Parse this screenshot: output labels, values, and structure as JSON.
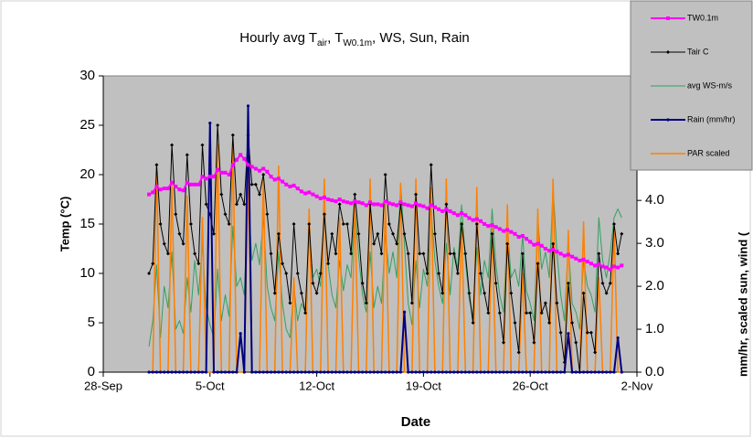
{
  "chart_data": {
    "type": "line",
    "title": [
      "Hourly avg T",
      "air",
      ", T",
      "W0.1m",
      ", WS, Sun, Rain"
    ],
    "x_label": "Date",
    "y_label": "Temp (°C)",
    "y2_label": "mm/hr, scaled sun, wind (",
    "plot_background": "#c0c0c0",
    "legend": "top-right",
    "xlim": [
      271,
      306
    ],
    "xticks": [
      {
        "value": 271,
        "label": "28-Sep"
      },
      {
        "value": 278,
        "label": "5-Oct"
      },
      {
        "value": 285,
        "label": "12-Oct"
      },
      {
        "value": 292,
        "label": "19-Oct"
      },
      {
        "value": 299,
        "label": "26-Oct"
      },
      {
        "value": 306,
        "label": "2-Nov"
      }
    ],
    "ylim": [
      0,
      30
    ],
    "yticks": [
      0,
      5,
      10,
      15,
      20,
      25,
      30
    ],
    "y2lim": [
      0,
      6.9
    ],
    "y2ticks": [
      {
        "value": 0,
        "label": "0.0"
      },
      {
        "value": 1,
        "label": "1.0"
      },
      {
        "value": 2,
        "label": "2.0"
      },
      {
        "value": 3,
        "label": "3.0"
      },
      {
        "value": 4,
        "label": "4.0"
      }
    ],
    "x": [
      274,
      274.25,
      274.5,
      274.75,
      275,
      275.25,
      275.5,
      275.75,
      276,
      276.25,
      276.5,
      276.75,
      277,
      277.25,
      277.5,
      277.75,
      278,
      278.25,
      278.5,
      278.75,
      279,
      279.25,
      279.5,
      279.75,
      280,
      280.25,
      280.5,
      280.75,
      281,
      281.25,
      281.5,
      281.75,
      282,
      282.25,
      282.5,
      282.75,
      283,
      283.25,
      283.5,
      283.75,
      284,
      284.25,
      284.5,
      284.75,
      285,
      285.25,
      285.5,
      285.75,
      286,
      286.25,
      286.5,
      286.75,
      287,
      287.25,
      287.5,
      287.75,
      288,
      288.25,
      288.5,
      288.75,
      289,
      289.25,
      289.5,
      289.75,
      290,
      290.25,
      290.5,
      290.75,
      291,
      291.25,
      291.5,
      291.75,
      292,
      292.25,
      292.5,
      292.75,
      293,
      293.25,
      293.5,
      293.75,
      294,
      294.25,
      294.5,
      294.75,
      295,
      295.25,
      295.5,
      295.75,
      296,
      296.25,
      296.5,
      296.75,
      297,
      297.25,
      297.5,
      297.75,
      298,
      298.25,
      298.5,
      298.75,
      299,
      299.25,
      299.5,
      299.75,
      300,
      300.25,
      300.5,
      300.75,
      301,
      301.25,
      301.5,
      301.75,
      302,
      302.25,
      302.5,
      302.75,
      303,
      303.25,
      303.5,
      303.75,
      304,
      304.25,
      304.5,
      304.75,
      305
    ],
    "series": [
      {
        "name": "TW0.1m",
        "color": "#ff00ff",
        "marker": "square",
        "width": 2,
        "values": [
          18.0,
          18.2,
          18.8,
          18.5,
          18.6,
          18.6,
          19.2,
          18.8,
          18.5,
          18.4,
          19.2,
          19.0,
          19.0,
          19.0,
          19.8,
          19.6,
          19.8,
          19.8,
          20.5,
          20.2,
          20.2,
          20.0,
          21.0,
          21.5,
          22.0,
          21.6,
          21.0,
          20.8,
          20.6,
          20.4,
          20.6,
          20.3,
          19.8,
          19.5,
          19.6,
          19.3,
          19.0,
          18.8,
          18.9,
          18.6,
          18.3,
          18.1,
          18.2,
          18.0,
          17.8,
          17.6,
          17.7,
          17.5,
          17.4,
          17.3,
          17.5,
          17.3,
          17.2,
          17.1,
          17.3,
          17.2,
          17.1,
          16.9,
          17.2,
          17.0,
          17.0,
          16.9,
          17.3,
          17.1,
          17.0,
          16.9,
          17.2,
          17.0,
          16.9,
          16.8,
          17.1,
          16.9,
          16.8,
          16.6,
          16.9,
          16.7,
          16.5,
          16.3,
          16.5,
          16.3,
          16.1,
          15.9,
          16.1,
          15.9,
          15.6,
          15.4,
          15.5,
          15.3,
          15.0,
          14.8,
          14.9,
          14.7,
          14.5,
          14.3,
          14.4,
          14.2,
          14.0,
          13.7,
          13.8,
          13.5,
          13.2,
          12.9,
          13.0,
          12.8,
          12.5,
          12.3,
          12.4,
          12.2,
          12.0,
          11.8,
          11.9,
          11.7,
          11.5,
          11.3,
          11.4,
          11.2,
          11.0,
          10.8,
          10.9,
          10.7,
          10.6,
          10.4,
          10.7,
          10.6,
          10.8
        ]
      },
      {
        "name": "Tair C",
        "color": "#000000",
        "marker": "diamond",
        "width": 1,
        "values": [
          10,
          11,
          21,
          15,
          13,
          12,
          23,
          16,
          14,
          13,
          22,
          15,
          12,
          11,
          23,
          17,
          16,
          14,
          25,
          18,
          16,
          15,
          24,
          17,
          18,
          17,
          24,
          19,
          19,
          18,
          20,
          16,
          12,
          8,
          14,
          11,
          10,
          7,
          15,
          10,
          8,
          6,
          15,
          9,
          8,
          10,
          16,
          11,
          14,
          12,
          17,
          15,
          15,
          12,
          18,
          14,
          9,
          7,
          17,
          13,
          14,
          12,
          20,
          15,
          14,
          13,
          17,
          14,
          12,
          7,
          18,
          12,
          12,
          10,
          21,
          14,
          10,
          8,
          17,
          12,
          12,
          10,
          15,
          12,
          8,
          5,
          15,
          10,
          8,
          6,
          14,
          9,
          6,
          3,
          13,
          8,
          5,
          2,
          12,
          6,
          6,
          3,
          11,
          6,
          7,
          5,
          13,
          7,
          4,
          1,
          9,
          5,
          3,
          0,
          8,
          4,
          4,
          2,
          12,
          9,
          8,
          9,
          15,
          12,
          14
        ]
      },
      {
        "name": "avg WS-m/s",
        "color": "#33a060",
        "axis": "y2",
        "width": 1,
        "values": [
          0.6,
          1.2,
          2.5,
          0.8,
          2.0,
          1.5,
          2.8,
          1.0,
          1.2,
          0.9,
          2.2,
          1.4,
          2.6,
          1.8,
          3.0,
          1.5,
          1.1,
          0.8,
          2.4,
          1.2,
          1.8,
          1.3,
          3.4,
          2.0,
          2.2,
          1.8,
          4.1,
          2.6,
          3.0,
          2.5,
          3.6,
          2.0,
          1.5,
          1.2,
          2.8,
          1.6,
          1.0,
          0.8,
          2.0,
          1.2,
          1.6,
          1.4,
          3.2,
          2.2,
          2.4,
          2.0,
          3.8,
          2.5,
          1.8,
          1.5,
          2.6,
          1.9,
          2.5,
          2.2,
          3.9,
          2.7,
          1.8,
          1.4,
          2.8,
          1.5,
          2.0,
          1.6,
          3.2,
          2.3,
          2.8,
          2.2,
          4.4,
          3.0,
          1.6,
          1.1,
          2.6,
          1.5,
          2.4,
          2.0,
          3.8,
          2.6,
          2.0,
          1.6,
          3.0,
          1.8,
          2.9,
          2.4,
          3.9,
          2.6,
          1.7,
          1.3,
          2.9,
          1.8,
          2.6,
          2.2,
          3.8,
          2.5,
          1.8,
          1.4,
          3.4,
          2.2,
          2.4,
          2.0,
          3.2,
          1.9,
          1.6,
          1.2,
          3.6,
          2.4,
          2.8,
          2.2,
          4.3,
          2.8,
          1.8,
          1.2,
          3.0,
          1.6,
          1.4,
          1.0,
          2.6,
          2.0,
          1.8,
          1.4,
          3.6,
          2.6,
          2.2,
          2.8,
          3.6,
          3.8,
          3.6
        ]
      },
      {
        "name": "Rain (mm/hr)",
        "color": "#000080",
        "axis": "y2",
        "marker": "circle",
        "width": 2,
        "values": [
          0,
          0,
          0,
          0,
          0,
          0,
          0,
          0,
          0,
          0,
          0,
          0,
          0,
          0,
          0,
          0,
          5.8,
          0,
          0,
          0,
          0,
          0,
          0,
          0,
          0.9,
          0,
          6.2,
          0,
          0,
          0,
          0,
          0,
          0,
          0,
          0,
          0,
          0,
          0,
          0,
          0,
          0,
          0,
          0,
          0,
          0,
          0,
          0,
          0,
          0,
          0,
          0,
          0,
          0,
          0,
          0,
          0,
          0,
          0,
          0,
          0,
          0,
          0,
          0,
          0,
          0,
          0,
          0,
          1.4,
          0,
          0,
          0,
          0,
          0,
          0,
          0,
          0,
          0,
          0,
          0,
          0,
          0,
          0,
          0,
          0,
          0,
          0,
          0,
          0,
          0,
          0,
          0,
          0,
          0,
          0,
          0,
          0,
          0,
          0,
          0,
          0,
          0,
          0,
          0,
          0,
          0,
          0,
          0,
          0,
          0,
          0,
          0.9,
          0,
          0,
          0,
          0,
          0,
          0,
          0,
          0,
          0,
          0,
          0,
          0,
          0.8,
          0
        ]
      },
      {
        "name": "PAR scaled",
        "color": "#ff8000",
        "axis": "y2",
        "width": 1.5,
        "values": [
          0,
          0,
          4.8,
          0,
          0,
          0,
          4.4,
          0,
          0,
          0,
          4.1,
          0,
          0,
          0,
          3.6,
          0,
          0,
          0,
          5.3,
          0,
          0,
          0,
          5.3,
          0,
          0,
          0,
          4.6,
          0,
          0,
          0,
          4.5,
          0,
          0,
          0,
          4.8,
          0,
          0,
          0,
          2.2,
          0,
          0,
          0,
          3.8,
          0,
          0,
          0,
          4.5,
          0,
          0,
          0,
          3.6,
          0,
          0,
          0,
          3.9,
          0,
          0,
          0,
          4.5,
          0,
          0,
          0,
          4.0,
          0,
          0,
          0,
          4.4,
          0,
          0,
          0,
          4.5,
          0,
          0,
          0,
          4.3,
          0,
          0,
          0,
          4.5,
          0,
          0,
          0,
          3.5,
          0,
          0,
          0,
          4.3,
          0,
          0,
          0,
          3.4,
          0,
          0,
          0,
          3.9,
          0,
          0,
          0,
          2.3,
          0,
          0,
          0,
          3.8,
          0,
          0,
          0,
          4.5,
          0,
          0,
          0,
          3.3,
          0,
          0,
          0,
          3.5,
          0,
          0,
          0,
          2.2,
          0,
          0,
          0,
          3.4,
          0,
          0
        ]
      }
    ]
  }
}
